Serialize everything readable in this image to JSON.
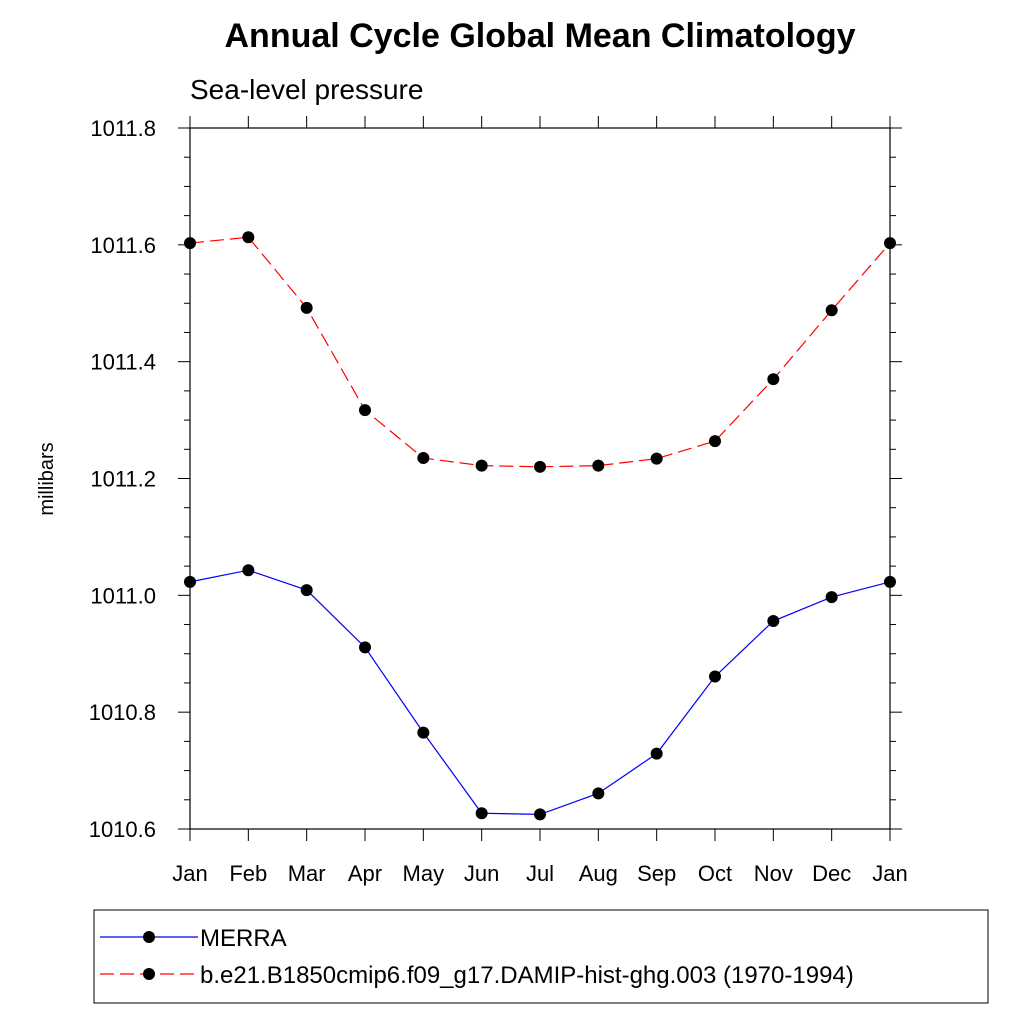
{
  "chart_data": {
    "type": "line",
    "title": "Annual Cycle Global Mean Climatology",
    "subtitle": "Sea-level pressure",
    "xlabel": "",
    "ylabel": "millibars",
    "categories": [
      "Jan",
      "Feb",
      "Mar",
      "Apr",
      "May",
      "Jun",
      "Jul",
      "Aug",
      "Sep",
      "Oct",
      "Nov",
      "Dec",
      "Jan"
    ],
    "ylim": [
      1010.6,
      1011.8
    ],
    "yticks": [
      1010.6,
      1010.8,
      1011.0,
      1011.2,
      1011.4,
      1011.6,
      1011.8
    ],
    "ytick_labels": [
      "1010.6",
      "1010.8",
      "1011.0",
      "1011.2",
      "1011.4",
      "1011.6",
      "1011.8"
    ],
    "grid": false,
    "legend": "bottom",
    "series": [
      {
        "name": "MERRA",
        "color": "#0000ff",
        "dash": "solid",
        "values": [
          1011.023,
          1011.043,
          1011.009,
          1010.911,
          1010.765,
          1010.627,
          1010.625,
          1010.661,
          1010.729,
          1010.861,
          1010.956,
          1010.997,
          1011.023
        ]
      },
      {
        "name": "b.e21.B1850cmip6.f09_g17.DAMIP-hist-ghg.003 (1970-1994)",
        "color": "#ff0000",
        "dash": "dashed",
        "values": [
          1011.603,
          1011.613,
          1011.492,
          1011.317,
          1011.235,
          1011.222,
          1011.22,
          1011.222,
          1011.234,
          1011.264,
          1011.37,
          1011.488,
          1011.603
        ]
      }
    ]
  }
}
